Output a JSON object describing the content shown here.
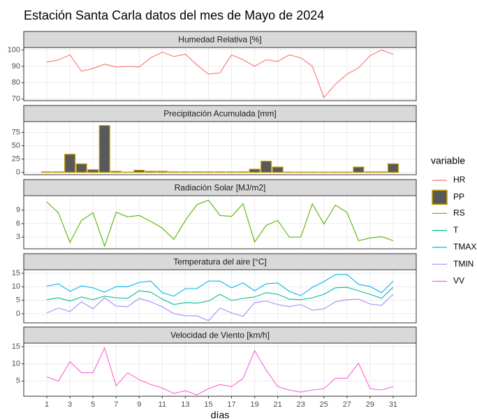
{
  "title": "Estación Santa Carla datos del mes de Mayo de 2024",
  "x_label": "días",
  "legend_title": "variable",
  "chart_data": [
    {
      "type": "line",
      "title": "Humedad Relativa [%]",
      "x": [
        1,
        2,
        3,
        4,
        5,
        6,
        7,
        8,
        9,
        10,
        11,
        12,
        13,
        14,
        15,
        16,
        17,
        18,
        19,
        20,
        21,
        22,
        23,
        24,
        25,
        26,
        27,
        28,
        29,
        30,
        31
      ],
      "series": [
        {
          "name": "HR",
          "color": "#F8766D",
          "values": [
            92.6,
            93.9,
            97,
            87,
            88.7,
            91.3,
            89.6,
            90,
            89.6,
            95.2,
            98.7,
            96,
            97.4,
            90.9,
            85.2,
            86,
            97,
            94,
            90,
            94,
            93,
            97,
            95.2,
            90,
            70.9,
            79,
            85.2,
            89,
            96.5,
            100,
            97.4
          ]
        }
      ],
      "xlim": [
        -1,
        33
      ],
      "xticks": [
        1,
        3,
        5,
        7,
        9,
        11,
        13,
        15,
        17,
        19,
        21,
        23,
        25,
        27,
        29,
        31
      ],
      "ylim": [
        69,
        101.5
      ],
      "yticks": [
        70,
        80,
        90,
        100
      ]
    },
    {
      "type": "bar",
      "title": "Precipitación Acumulada [mm]",
      "x": [
        1,
        2,
        3,
        4,
        5,
        6,
        7,
        8,
        9,
        10,
        11,
        12,
        13,
        14,
        15,
        16,
        17,
        18,
        19,
        20,
        21,
        22,
        23,
        24,
        25,
        26,
        27,
        28,
        29,
        30,
        31
      ],
      "series": [
        {
          "name": "PP",
          "color": "#595959",
          "border": "#C49A00",
          "values": [
            1,
            1,
            34,
            16,
            5,
            88,
            2,
            0.5,
            4,
            2,
            2,
            1,
            1,
            1,
            1,
            1,
            1,
            1,
            6,
            21,
            10,
            0.5,
            0.5,
            0.5,
            0.5,
            0.5,
            0.5,
            10,
            1,
            1,
            16
          ]
        }
      ],
      "xlim": [
        -1,
        33
      ],
      "xticks": [
        1,
        3,
        5,
        7,
        9,
        11,
        13,
        15,
        17,
        19,
        21,
        23,
        25,
        27,
        29,
        31
      ],
      "ylim": [
        -4.4,
        95.4
      ],
      "yticks": [
        0,
        25,
        50,
        75
      ]
    },
    {
      "type": "line",
      "title": "Radiación Solar [MJ/m2]",
      "x": [
        1,
        2,
        3,
        4,
        5,
        6,
        7,
        8,
        9,
        10,
        11,
        12,
        13,
        14,
        15,
        16,
        17,
        18,
        19,
        20,
        21,
        22,
        23,
        24,
        25,
        26,
        27,
        28,
        29,
        30,
        31
      ],
      "series": [
        {
          "name": "RS",
          "color": "#53B400",
          "values": [
            10.8,
            8.4,
            1.8,
            6.7,
            8.4,
            1.0,
            8.5,
            7.5,
            7.8,
            6.5,
            5,
            2.5,
            6.7,
            10.2,
            11.2,
            7.8,
            7.6,
            10.4,
            1.9,
            5.6,
            6.7,
            3,
            3,
            10.4,
            5.9,
            10.1,
            8.5,
            2.2,
            2.8,
            3.1,
            2.2
          ]
        }
      ],
      "xlim": [
        -1,
        33
      ],
      "xticks": [
        1,
        3,
        5,
        7,
        9,
        11,
        13,
        15,
        17,
        19,
        21,
        23,
        25,
        27,
        29,
        31
      ],
      "ylim": [
        0.4,
        12.2
      ],
      "yticks": [
        3,
        6,
        9
      ]
    },
    {
      "type": "line",
      "title": "Temperatura del aire [°C]",
      "x": [
        1,
        2,
        3,
        4,
        5,
        6,
        7,
        8,
        9,
        10,
        11,
        12,
        13,
        14,
        15,
        16,
        17,
        18,
        19,
        20,
        21,
        22,
        23,
        24,
        25,
        26,
        27,
        28,
        29,
        30,
        31
      ],
      "series": [
        {
          "name": "T",
          "color": "#00C094",
          "values": [
            5.2,
            5.9,
            4.7,
            6.2,
            5.2,
            6.5,
            5.9,
            5.7,
            8.5,
            8,
            5.4,
            3.4,
            4.1,
            3.9,
            4.7,
            7.2,
            4.9,
            5.7,
            6.2,
            7.8,
            7.2,
            5.4,
            5.2,
            5.9,
            7.2,
            9.6,
            9.8,
            8.5,
            7.2,
            5.7,
            9.8
          ]
        },
        {
          "name": "TMAX",
          "color": "#00B6EB",
          "values": [
            10.2,
            11.1,
            8.3,
            10.3,
            9.6,
            8,
            10,
            10,
            11.6,
            12.1,
            7.8,
            6.5,
            9.3,
            9.3,
            12.1,
            12.1,
            9.6,
            11.4,
            8.5,
            11.1,
            11.4,
            8.3,
            6.7,
            9.8,
            11.9,
            14.5,
            14.5,
            10.9,
            10.1,
            7.8,
            12.1
          ]
        },
        {
          "name": "TMIN",
          "color": "#A58AFF",
          "values": [
            0.3,
            2.1,
            0.8,
            4.4,
            1.8,
            5.9,
            2.8,
            2.6,
            5.7,
            4.4,
            2.6,
            0,
            -0.8,
            -0.8,
            -2.6,
            2.1,
            0.3,
            -1,
            4.1,
            4.7,
            3.4,
            2.6,
            3.4,
            1.3,
            1.8,
            4.4,
            5.2,
            5.4,
            3.6,
            3.1,
            7.2
          ]
        }
      ],
      "xlim": [
        -1,
        33
      ],
      "xticks": [
        1,
        3,
        5,
        7,
        9,
        11,
        13,
        15,
        17,
        19,
        21,
        23,
        25,
        27,
        29,
        31
      ],
      "ylim": [
        -3.4,
        16.3
      ],
      "yticks": [
        0,
        5,
        10,
        15
      ]
    },
    {
      "type": "line",
      "title": "Velocidad de Viento [km/h]",
      "x": [
        1,
        2,
        3,
        4,
        5,
        6,
        7,
        8,
        9,
        10,
        11,
        12,
        13,
        14,
        15,
        16,
        17,
        18,
        19,
        20,
        21,
        22,
        23,
        24,
        25,
        26,
        27,
        28,
        29,
        30,
        31
      ],
      "series": [
        {
          "name": "VV",
          "color": "#FB61D7",
          "values": [
            6.2,
            5,
            10.6,
            7.4,
            7.4,
            14.6,
            3.6,
            7.4,
            5.4,
            4,
            3,
            1.4,
            2.2,
            1,
            2.8,
            4,
            3.4,
            5.8,
            13.8,
            8.2,
            3.4,
            2.4,
            1.8,
            2.4,
            2.8,
            5.8,
            5.8,
            10.2,
            2.8,
            2.4,
            3.4
          ]
        }
      ],
      "xlim": [
        -1,
        33
      ],
      "xticks": [
        1,
        3,
        5,
        7,
        9,
        11,
        13,
        15,
        17,
        19,
        21,
        23,
        25,
        27,
        29,
        31
      ],
      "ylim": [
        0.6,
        16
      ],
      "yticks": [
        5,
        10,
        15
      ]
    }
  ]
}
